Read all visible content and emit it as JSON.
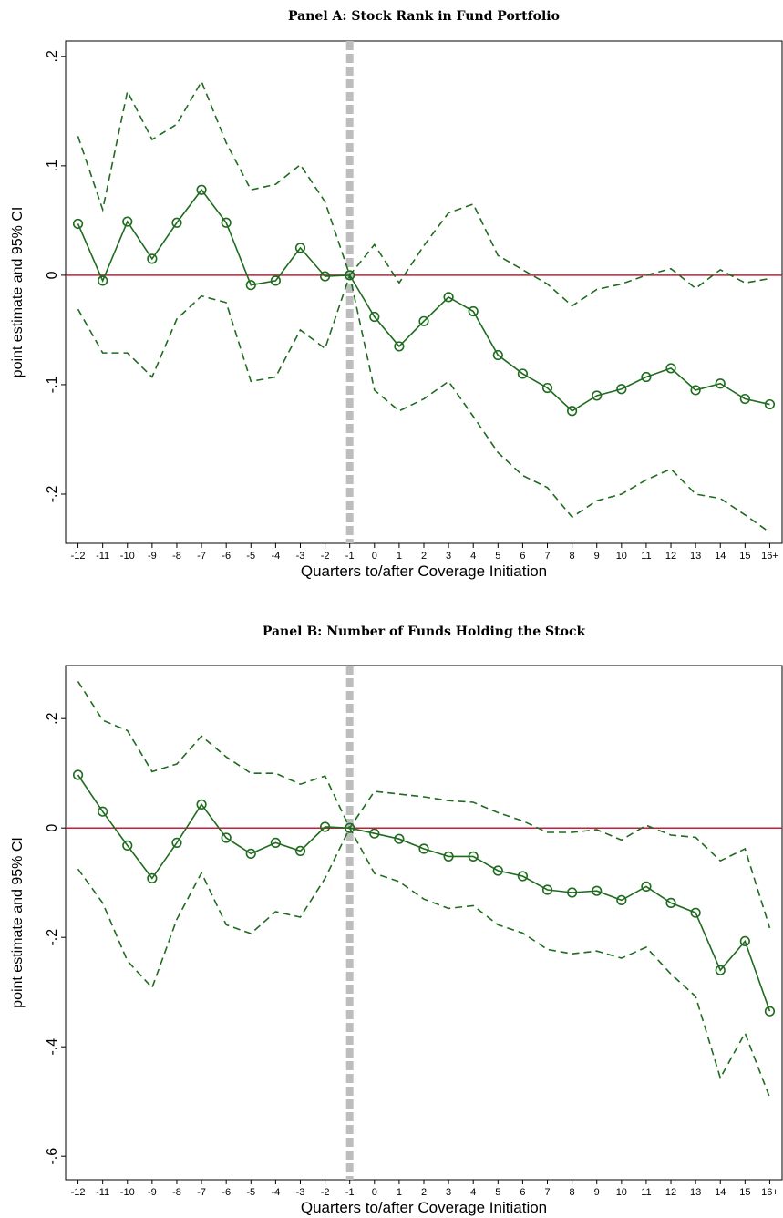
{
  "chart_data": [
    {
      "type": "line",
      "title": "Panel A: Stock Rank in Fund Portfolio",
      "x_label": "Quarters to/after Coverage Initiation",
      "y_label": "point estimate and 95% CI",
      "categories": [
        "-12",
        "-11",
        "-10",
        "-9",
        "-8",
        "-7",
        "-6",
        "-5",
        "-4",
        "-3",
        "-2",
        "-1",
        "0",
        "1",
        "2",
        "3",
        "4",
        "5",
        "6",
        "7",
        "8",
        "9",
        "10",
        "11",
        "12",
        "13",
        "14",
        "15",
        "16+"
      ],
      "ylim": [
        -0.245,
        0.214
      ],
      "yticks": [
        {
          "value": 0.2,
          "label": ".2"
        },
        {
          "value": 0.1,
          "label": ".1"
        },
        0,
        {
          "value": -0.1,
          "label": "-.1"
        },
        {
          "value": -0.2,
          "label": "-.2"
        }
      ],
      "hline": 0,
      "hline_color": "#c41e3a",
      "vline": "-1",
      "vline_color": "#bdbdbd",
      "series": [
        {
          "color": "#1f6b1f",
          "dashed": false,
          "markers": true,
          "values": [
            0.047,
            -0.005,
            0.049,
            0.015,
            0.048,
            0.078,
            0.048,
            -0.009,
            -0.005,
            0.025,
            -0.001,
            0,
            -0.038,
            -0.065,
            -0.042,
            -0.02,
            -0.033,
            -0.073,
            -0.09,
            -0.103,
            -0.124,
            -0.11,
            -0.104,
            -0.093,
            -0.085,
            -0.105,
            -0.099,
            -0.113,
            -0.118
          ]
        },
        {
          "color": "#1f6b1f",
          "dashed": true,
          "markers": false,
          "values": [
            0.127,
            0.06,
            0.168,
            0.124,
            0.138,
            0.177,
            0.121,
            0.078,
            0.083,
            0.101,
            0.067,
            0,
            0.028,
            -0.007,
            0.027,
            0.057,
            0.065,
            0.018,
            0.005,
            -0.008,
            -0.028,
            -0.013,
            -0.008,
            0,
            0.006,
            -0.012,
            0.005,
            -0.007,
            -0.003
          ]
        },
        {
          "color": "#1f6b1f",
          "dashed": true,
          "markers": false,
          "values": [
            -0.031,
            -0.071,
            -0.071,
            -0.093,
            -0.04,
            -0.019,
            -0.025,
            -0.097,
            -0.093,
            -0.05,
            -0.067,
            0,
            -0.105,
            -0.124,
            -0.113,
            -0.097,
            -0.129,
            -0.162,
            -0.183,
            -0.194,
            -0.221,
            -0.206,
            -0.2,
            -0.187,
            -0.177,
            -0.2,
            -0.204,
            -0.219,
            -0.235
          ]
        }
      ]
    },
    {
      "type": "line",
      "title": "Panel B: Number of Funds Holding the Stock",
      "x_label": "Quarters to/after Coverage Initiation",
      "y_label": "point estimate and 95% CI",
      "categories": [
        "-12",
        "-11",
        "-10",
        "-9",
        "-8",
        "-7",
        "-6",
        "-5",
        "-4",
        "-3",
        "-2",
        "-1",
        "0",
        "1",
        "2",
        "3",
        "4",
        "5",
        "6",
        "7",
        "8",
        "9",
        "10",
        "11",
        "12",
        "13",
        "14",
        "15",
        "16+"
      ],
      "ylim": [
        -0.643,
        0.297
      ],
      "yticks": [
        {
          "value": 0.2,
          "label": ".2"
        },
        0,
        {
          "value": -0.2,
          "label": "-.2"
        },
        {
          "value": -0.4,
          "label": "-.4"
        },
        {
          "value": -0.6,
          "label": "-.6"
        }
      ],
      "hline": 0,
      "hline_color": "#c41e3a",
      "vline": "-1",
      "vline_color": "#bdbdbd",
      "series": [
        {
          "color": "#1f6b1f",
          "dashed": false,
          "markers": true,
          "values": [
            0.097,
            0.03,
            -0.032,
            -0.092,
            -0.027,
            0.043,
            -0.018,
            -0.047,
            -0.027,
            -0.042,
            0.002,
            0,
            -0.01,
            -0.02,
            -0.038,
            -0.052,
            -0.052,
            -0.078,
            -0.088,
            -0.113,
            -0.118,
            -0.115,
            -0.132,
            -0.107,
            -0.137,
            -0.155,
            -0.26,
            -0.207,
            -0.335
          ]
        },
        {
          "color": "#1f6b1f",
          "dashed": true,
          "markers": false,
          "values": [
            0.268,
            0.197,
            0.178,
            0.103,
            0.117,
            0.168,
            0.13,
            0.1,
            0.1,
            0.08,
            0.095,
            0,
            0.067,
            0.062,
            0.057,
            0.05,
            0.047,
            0.028,
            0.013,
            -0.008,
            -0.008,
            -0.003,
            -0.022,
            0.005,
            -0.013,
            -0.017,
            -0.06,
            -0.038,
            -0.183
          ]
        },
        {
          "color": "#1f6b1f",
          "dashed": true,
          "markers": false,
          "values": [
            -0.075,
            -0.137,
            -0.243,
            -0.292,
            -0.167,
            -0.082,
            -0.177,
            -0.193,
            -0.153,
            -0.163,
            -0.092,
            0,
            -0.083,
            -0.098,
            -0.13,
            -0.147,
            -0.142,
            -0.177,
            -0.192,
            -0.222,
            -0.23,
            -0.225,
            -0.238,
            -0.218,
            -0.267,
            -0.308,
            -0.457,
            -0.375,
            -0.493
          ]
        }
      ]
    }
  ]
}
